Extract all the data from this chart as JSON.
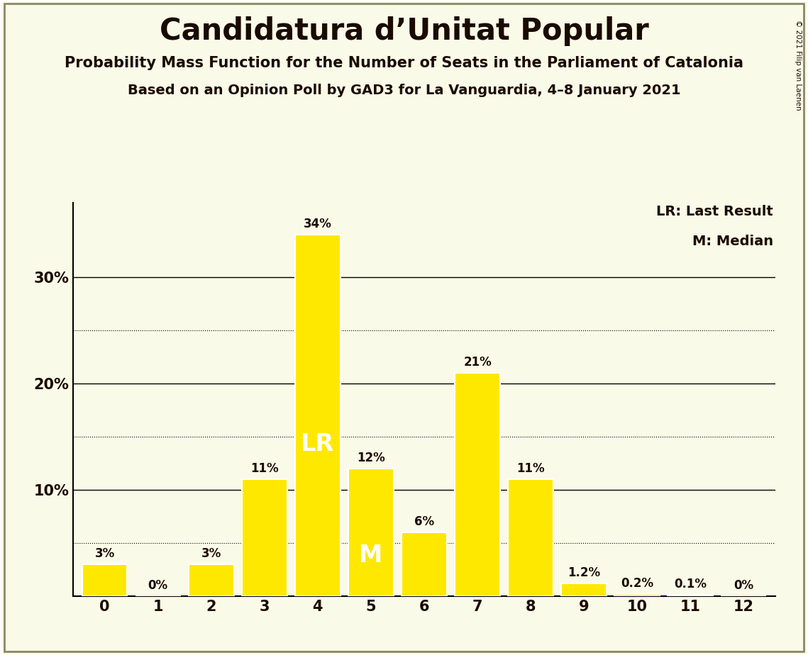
{
  "title": "Candidatura d’Unitat Popular",
  "subtitle1": "Probability Mass Function for the Number of Seats in the Parliament of Catalonia",
  "subtitle2": "Based on an Opinion Poll by GAD3 for La Vanguardia, 4–8 January 2021",
  "copyright": "© 2021 Filip van Laenen",
  "categories": [
    0,
    1,
    2,
    3,
    4,
    5,
    6,
    7,
    8,
    9,
    10,
    11,
    12
  ],
  "values": [
    3,
    0,
    3,
    11,
    34,
    12,
    6,
    21,
    11,
    1.2,
    0.2,
    0.1,
    0
  ],
  "bar_color": "#FFE800",
  "bar_edge_color": "#FFFFFF",
  "background_color": "#FAFAE8",
  "text_color": "#1a0a00",
  "lr_bar": 4,
  "median_bar": 5,
  "lr_label": "LR",
  "median_label": "M",
  "legend_lr": "LR: Last Result",
  "legend_m": "M: Median",
  "dotted_lines": [
    5,
    15,
    25
  ],
  "solid_lines": [
    10,
    20,
    30
  ],
  "ylim": [
    0,
    37
  ],
  "bar_labels": [
    "3%",
    "0%",
    "3%",
    "11%",
    "34%",
    "12%",
    "6%",
    "21%",
    "11%",
    "1.2%",
    "0.2%",
    "0.1%",
    "0%"
  ]
}
